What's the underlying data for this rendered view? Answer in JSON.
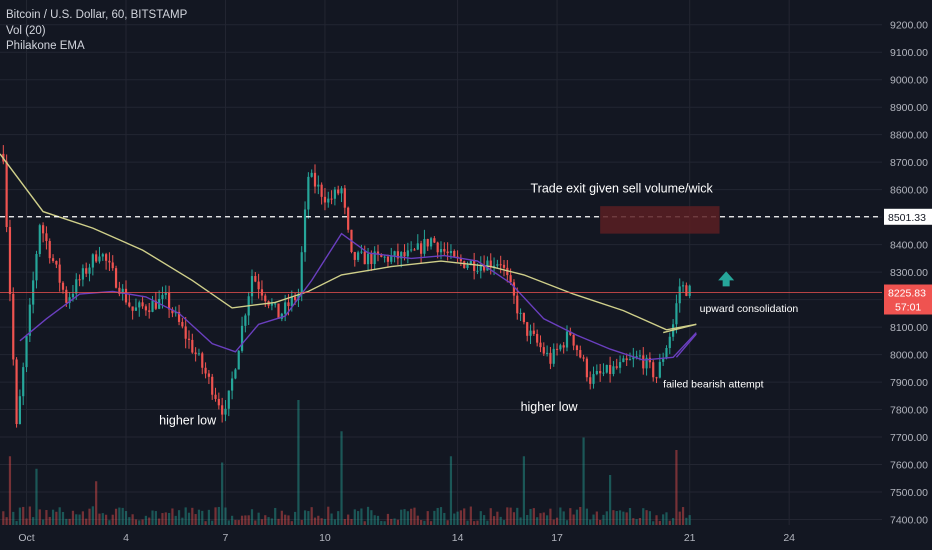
{
  "legend": {
    "symbol": "Bitcoin / U.S. Dollar, 60, BITSTAMP",
    "volume": "Vol (20)",
    "ema": "Philakone EMA"
  },
  "colors": {
    "background": "#131722",
    "grid": "#232632",
    "up": "#26a69a",
    "down": "#ef5350",
    "ema_slow": "#cfcf8a",
    "ema_fast": "#6a3fbf",
    "axis_text": "#b2b5be",
    "annotation": "#ffffff",
    "price_label_bg": "#ef5350",
    "arrow": "#26a69a",
    "exit_box": "#5a1f22"
  },
  "chart_data": {
    "type": "candlestick",
    "symbol": "Bitcoin / U.S. Dollar",
    "interval": "60",
    "exchange": "BITSTAMP",
    "y_axis_side": "right",
    "grid": true,
    "ylim": [
      7380,
      9290
    ],
    "y_ticks": [
      "9200.00",
      "9100.00",
      "9000.00",
      "8900.00",
      "8800.00",
      "8700.00",
      "8600.00",
      "8500.00",
      "8400.00",
      "8300.00",
      "8200.00",
      "8100.00",
      "8000.00",
      "7900.00",
      "7800.00",
      "7700.00",
      "7600.00",
      "7500.00",
      "7400.00"
    ],
    "x_ticks": [
      {
        "label": "Oct",
        "day": 1
      },
      {
        "label": "4",
        "day": 4
      },
      {
        "label": "7",
        "day": 7
      },
      {
        "label": "10",
        "day": 10
      },
      {
        "label": "14",
        "day": 14
      },
      {
        "label": "17",
        "day": 17
      },
      {
        "label": "21",
        "day": 21
      },
      {
        "label": "24",
        "day": 24
      }
    ],
    "xlim_days": [
      0.2,
      26.8
    ],
    "price_line": {
      "value": 8501.33,
      "label": "8501.33",
      "style": "dashed"
    },
    "current_price": {
      "value": 8225.83,
      "label": "8225.83",
      "countdown": "57:01"
    },
    "key_points": [
      {
        "day": 0.3,
        "price": 8730
      },
      {
        "day": 0.7,
        "price": 7730
      },
      {
        "day": 1.4,
        "price": 8480
      },
      {
        "day": 2.2,
        "price": 8200
      },
      {
        "day": 3.2,
        "price": 8380
      },
      {
        "day": 4.2,
        "price": 8160
      },
      {
        "day": 5.2,
        "price": 8200
      },
      {
        "day": 6.2,
        "price": 7980
      },
      {
        "day": 7.0,
        "price": 7780
      },
      {
        "day": 7.8,
        "price": 8290
      },
      {
        "day": 8.6,
        "price": 8140
      },
      {
        "day": 9.2,
        "price": 8220
      },
      {
        "day": 9.5,
        "price": 8650
      },
      {
        "day": 10.1,
        "price": 8560
      },
      {
        "day": 10.5,
        "price": 8600
      },
      {
        "day": 10.8,
        "price": 8350
      },
      {
        "day": 11.8,
        "price": 8350
      },
      {
        "day": 12.6,
        "price": 8360
      },
      {
        "day": 13.2,
        "price": 8420
      },
      {
        "day": 13.9,
        "price": 8340
      },
      {
        "day": 14.6,
        "price": 8330
      },
      {
        "day": 15.3,
        "price": 8340
      },
      {
        "day": 16.0,
        "price": 8100
      },
      {
        "day": 16.8,
        "price": 7980
      },
      {
        "day": 17.4,
        "price": 8080
      },
      {
        "day": 18.0,
        "price": 7910
      },
      {
        "day": 18.8,
        "price": 7950
      },
      {
        "day": 19.5,
        "price": 7990
      },
      {
        "day": 20.0,
        "price": 7920
      },
      {
        "day": 20.5,
        "price": 8110
      },
      {
        "day": 20.7,
        "price": 8250
      },
      {
        "day": 21.1,
        "price": 8226
      }
    ],
    "ema_slow": [
      {
        "day": 0.2,
        "price": 8730
      },
      {
        "day": 1.5,
        "price": 8520
      },
      {
        "day": 3,
        "price": 8460
      },
      {
        "day": 4.5,
        "price": 8380
      },
      {
        "day": 6,
        "price": 8270
      },
      {
        "day": 7.2,
        "price": 8170
      },
      {
        "day": 8.5,
        "price": 8190
      },
      {
        "day": 9.5,
        "price": 8230
      },
      {
        "day": 10.5,
        "price": 8290
      },
      {
        "day": 12,
        "price": 8320
      },
      {
        "day": 13.5,
        "price": 8340
      },
      {
        "day": 15,
        "price": 8320
      },
      {
        "day": 16,
        "price": 8290
      },
      {
        "day": 17.5,
        "price": 8220
      },
      {
        "day": 19,
        "price": 8160
      },
      {
        "day": 20.3,
        "price": 8090
      },
      {
        "day": 21.2,
        "price": 8110
      }
    ],
    "ema_fast": [
      {
        "day": 0.8,
        "price": 8050
      },
      {
        "day": 1.6,
        "price": 8130
      },
      {
        "day": 2.6,
        "price": 8220
      },
      {
        "day": 3.6,
        "price": 8230
      },
      {
        "day": 4.6,
        "price": 8210
      },
      {
        "day": 5.6,
        "price": 8150
      },
      {
        "day": 6.6,
        "price": 8040
      },
      {
        "day": 7.3,
        "price": 8010
      },
      {
        "day": 8.0,
        "price": 8110
      },
      {
        "day": 8.8,
        "price": 8140
      },
      {
        "day": 9.6,
        "price": 8270
      },
      {
        "day": 10.5,
        "price": 8440
      },
      {
        "day": 11.3,
        "price": 8370
      },
      {
        "day": 12.6,
        "price": 8350
      },
      {
        "day": 13.6,
        "price": 8360
      },
      {
        "day": 14.6,
        "price": 8340
      },
      {
        "day": 15.6,
        "price": 8260
      },
      {
        "day": 16.6,
        "price": 8130
      },
      {
        "day": 17.6,
        "price": 8070
      },
      {
        "day": 18.6,
        "price": 8020
      },
      {
        "day": 19.6,
        "price": 7980
      },
      {
        "day": 20.5,
        "price": 7990
      },
      {
        "day": 21.2,
        "price": 8080
      }
    ],
    "volume_spikes": [
      {
        "day": 0.5,
        "v": 0.55
      },
      {
        "day": 1.3,
        "v": 0.45
      },
      {
        "day": 3.1,
        "v": 0.35
      },
      {
        "day": 6.9,
        "v": 0.5
      },
      {
        "day": 9.2,
        "v": 1.0
      },
      {
        "day": 10.5,
        "v": 0.75
      },
      {
        "day": 13.8,
        "v": 0.55
      },
      {
        "day": 16.0,
        "v": 0.55
      },
      {
        "day": 17.8,
        "v": 0.7
      },
      {
        "day": 18.6,
        "v": 0.4
      },
      {
        "day": 20.6,
        "v": 0.6
      }
    ],
    "annotations": [
      {
        "id": "trade_exit",
        "text": "Trade exit given sell volume/wick",
        "day": 16.2,
        "price": 8590
      },
      {
        "id": "upward_cons",
        "text": "upward consolidation",
        "day": 21.3,
        "price": 8155
      },
      {
        "id": "failed_bear",
        "text": "failed bearish attempt",
        "day": 20.2,
        "price": 7880
      },
      {
        "id": "hl1",
        "text": "higher low",
        "day": 5.0,
        "price": 7745
      },
      {
        "id": "hl2",
        "text": "higher low",
        "day": 15.9,
        "price": 7795
      }
    ],
    "exit_zone": {
      "day_from": 18.3,
      "day_to": 21.9,
      "price_from": 8440,
      "price_to": 8540
    },
    "arrow": {
      "day": 22.1,
      "price": 8270,
      "direction": "up"
    },
    "projection_line": [
      {
        "day": 20.2,
        "price": 8080
      },
      {
        "day": 21.2,
        "price": 8110
      }
    ],
    "projection_line_fast": [
      {
        "day": 20.6,
        "price": 7990
      },
      {
        "day": 21.2,
        "price": 8075
      }
    ]
  }
}
